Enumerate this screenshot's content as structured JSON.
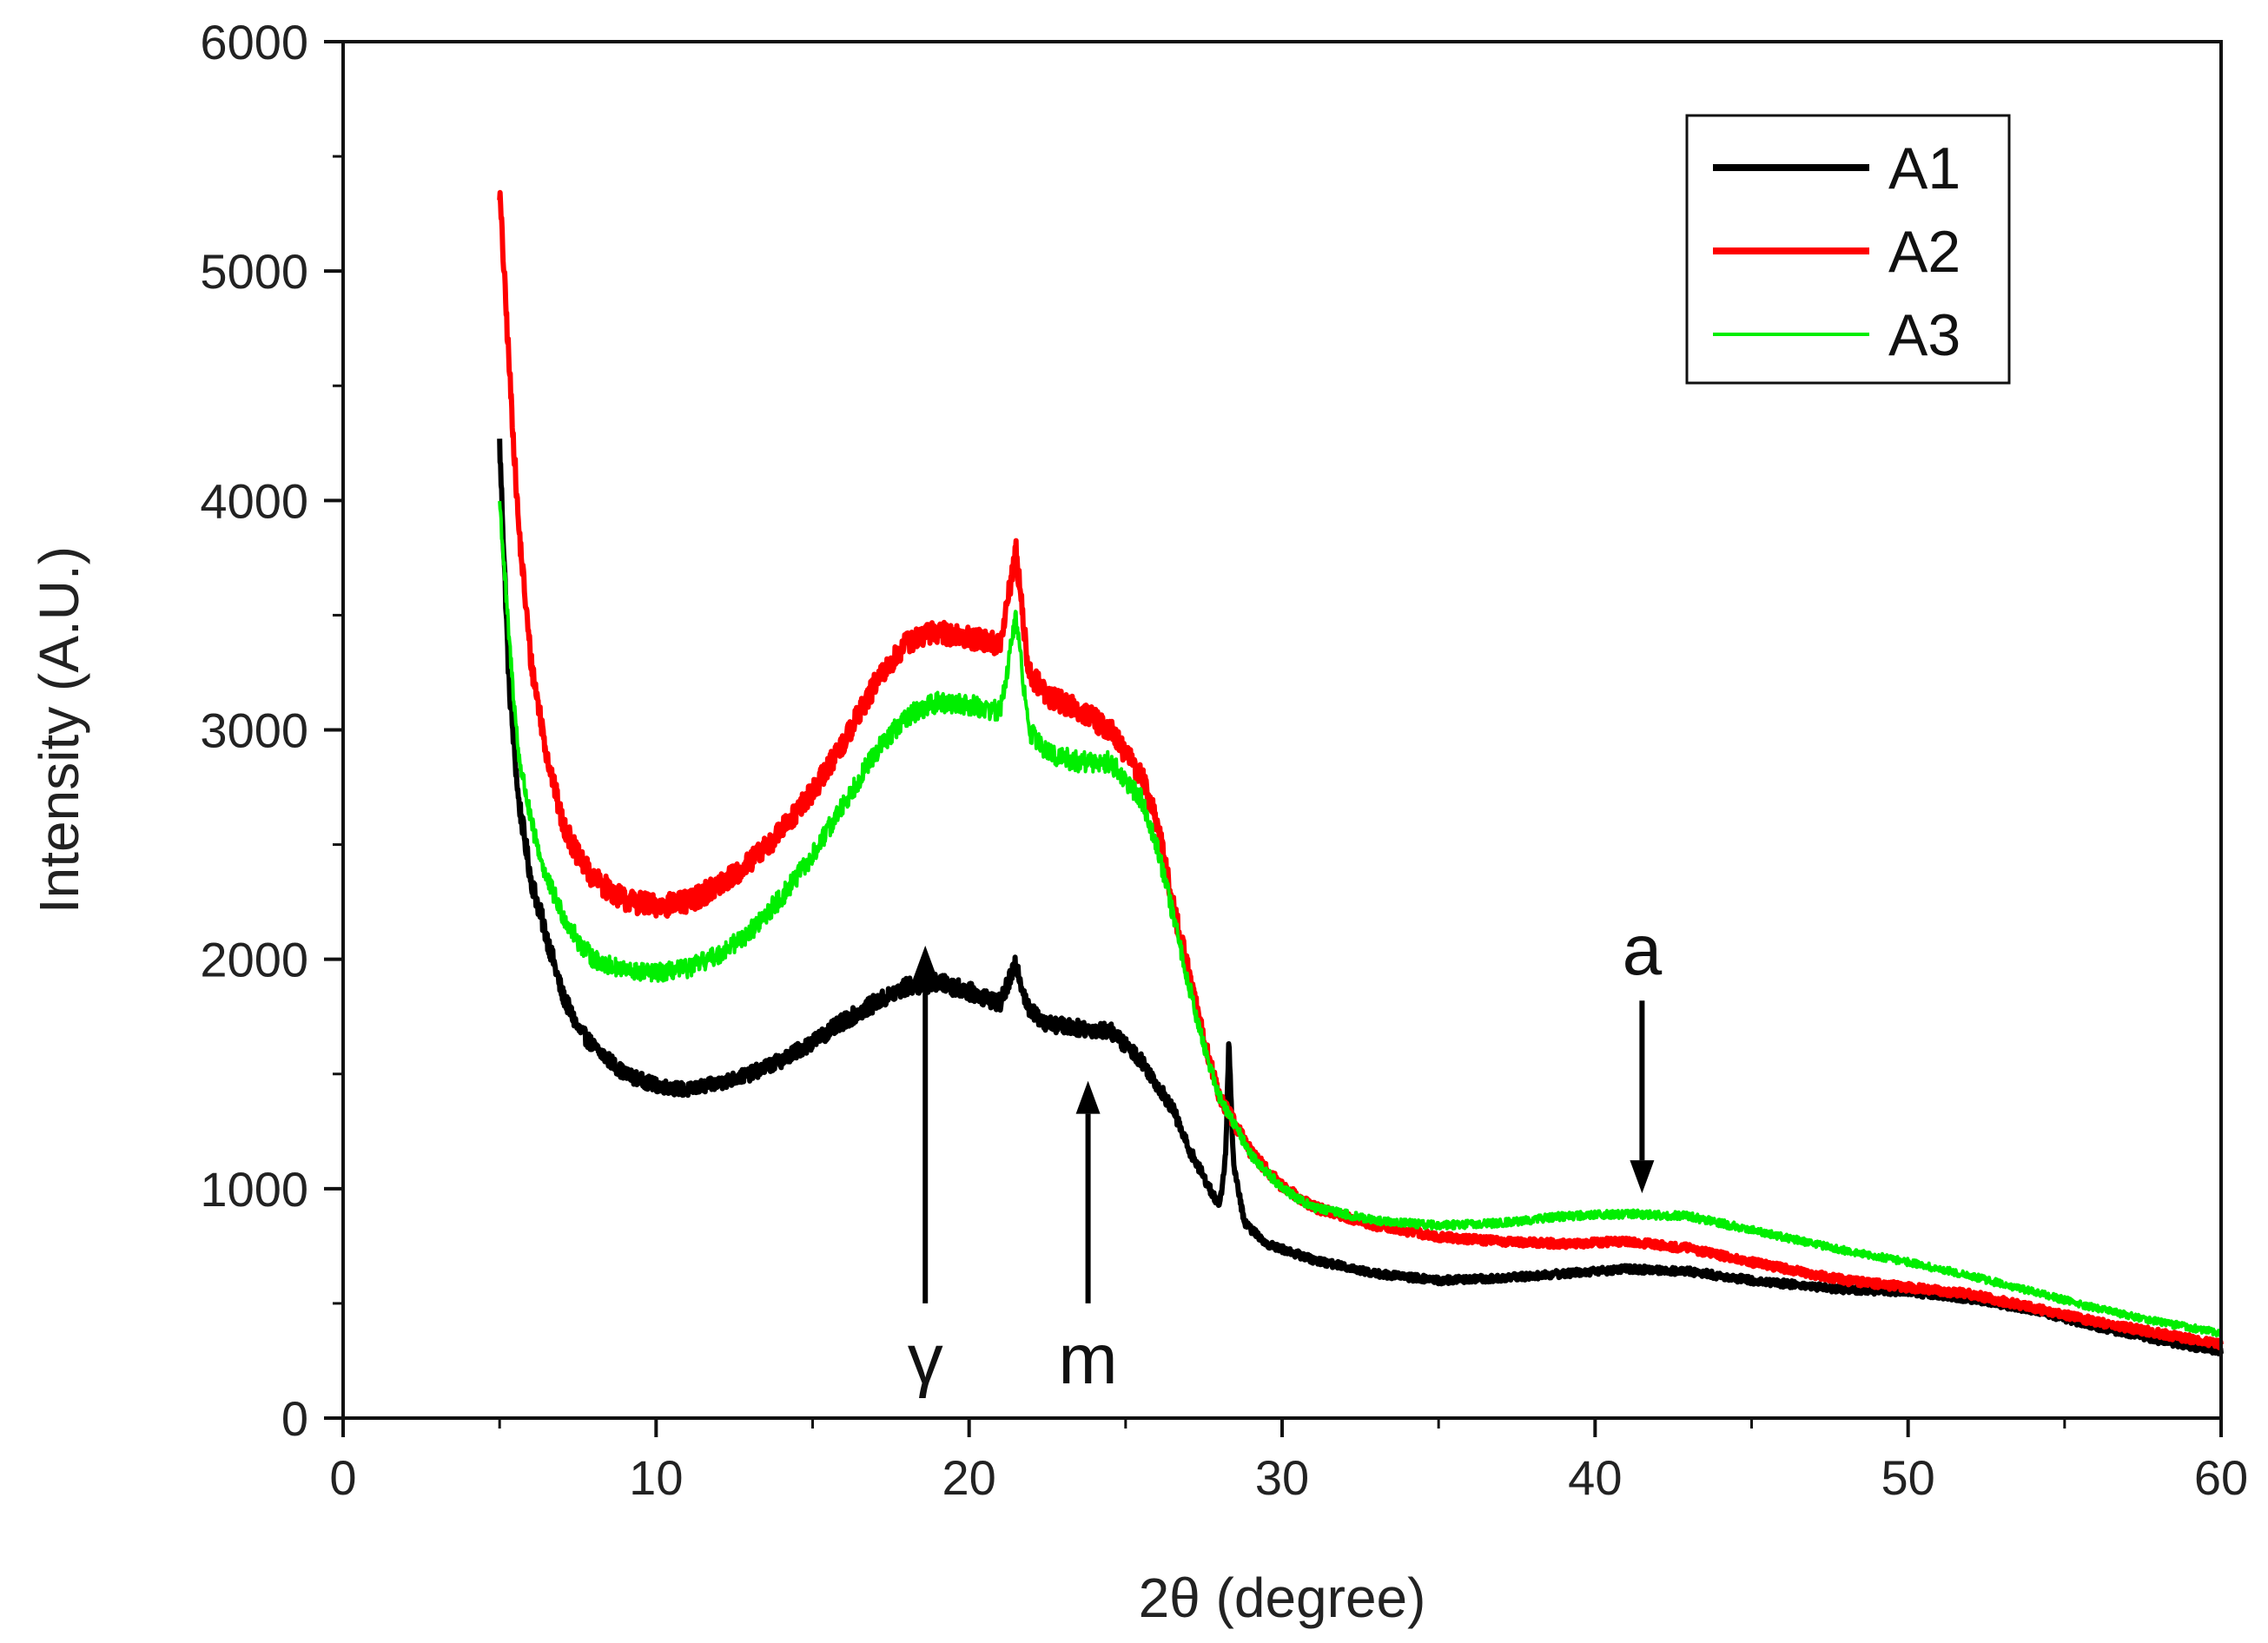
{
  "chart_data": {
    "type": "line",
    "title": "",
    "xlabel": "2θ  (degree)",
    "ylabel": "Intensity (A.U.)",
    "xlim": [
      0,
      60
    ],
    "ylim": [
      0,
      6000
    ],
    "x_ticks": [
      0,
      10,
      20,
      30,
      40,
      50,
      60
    ],
    "y_ticks": [
      0,
      1000,
      2000,
      3000,
      4000,
      5000,
      6000
    ],
    "x_tick_labels": [
      "0",
      "10",
      "20",
      "30",
      "40",
      "50",
      "60"
    ],
    "y_tick_labels": [
      "0",
      "1000",
      "2000",
      "3000",
      "4000",
      "5000",
      "6000"
    ],
    "grid": false,
    "legend_position": "top-right",
    "series": [
      {
        "name": "A1",
        "color": "#000000",
        "noise": 45,
        "points": [
          [
            5.0,
            4250
          ],
          [
            5.3,
            3200
          ],
          [
            5.6,
            2700
          ],
          [
            6.0,
            2350
          ],
          [
            6.5,
            2100
          ],
          [
            7.0,
            1850
          ],
          [
            7.5,
            1700
          ],
          [
            8.0,
            1620
          ],
          [
            9.0,
            1500
          ],
          [
            10.0,
            1450
          ],
          [
            11.0,
            1430
          ],
          [
            12.0,
            1460
          ],
          [
            13.0,
            1500
          ],
          [
            14.0,
            1560
          ],
          [
            15.0,
            1640
          ],
          [
            16.0,
            1730
          ],
          [
            17.0,
            1810
          ],
          [
            18.0,
            1880
          ],
          [
            19.0,
            1900
          ],
          [
            20.0,
            1860
          ],
          [
            21.0,
            1810
          ],
          [
            21.5,
            1980
          ],
          [
            21.9,
            1780
          ],
          [
            22.5,
            1720
          ],
          [
            23.5,
            1700
          ],
          [
            24.5,
            1690
          ],
          [
            25.5,
            1560
          ],
          [
            26.5,
            1350
          ],
          [
            27.0,
            1180
          ],
          [
            27.5,
            1050
          ],
          [
            28.0,
            920
          ],
          [
            28.2,
            1150
          ],
          [
            28.3,
            1650
          ],
          [
            28.45,
            1100
          ],
          [
            28.8,
            850
          ],
          [
            29.5,
            760
          ],
          [
            31.0,
            690
          ],
          [
            33.0,
            630
          ],
          [
            35.0,
            600
          ],
          [
            37.0,
            610
          ],
          [
            39.0,
            630
          ],
          [
            41.0,
            650
          ],
          [
            43.0,
            640
          ],
          [
            45.0,
            600
          ],
          [
            48.0,
            560
          ],
          [
            50.0,
            550
          ],
          [
            52.0,
            520
          ],
          [
            54.0,
            470
          ],
          [
            56.0,
            400
          ],
          [
            58.0,
            340
          ],
          [
            60.0,
            290
          ]
        ]
      },
      {
        "name": "A2",
        "color": "#ff0000",
        "noise": 50,
        "points": [
          [
            5.0,
            5350
          ],
          [
            5.3,
            4600
          ],
          [
            5.6,
            3900
          ],
          [
            6.0,
            3300
          ],
          [
            6.5,
            2900
          ],
          [
            7.0,
            2600
          ],
          [
            7.5,
            2450
          ],
          [
            8.0,
            2350
          ],
          [
            9.0,
            2260
          ],
          [
            10.0,
            2230
          ],
          [
            11.0,
            2250
          ],
          [
            12.0,
            2320
          ],
          [
            13.0,
            2420
          ],
          [
            14.0,
            2560
          ],
          [
            15.0,
            2730
          ],
          [
            16.0,
            2950
          ],
          [
            17.0,
            3200
          ],
          [
            18.0,
            3380
          ],
          [
            19.0,
            3430
          ],
          [
            20.0,
            3400
          ],
          [
            21.0,
            3370
          ],
          [
            21.5,
            3780
          ],
          [
            21.9,
            3250
          ],
          [
            22.5,
            3150
          ],
          [
            23.5,
            3090
          ],
          [
            24.5,
            3000
          ],
          [
            25.5,
            2800
          ],
          [
            26.0,
            2600
          ],
          [
            26.5,
            2250
          ],
          [
            27.0,
            1950
          ],
          [
            27.5,
            1650
          ],
          [
            28.0,
            1400
          ],
          [
            29.0,
            1160
          ],
          [
            30.0,
            1010
          ],
          [
            31.0,
            920
          ],
          [
            33.0,
            840
          ],
          [
            35.0,
            790
          ],
          [
            37.0,
            770
          ],
          [
            39.0,
            760
          ],
          [
            41.0,
            770
          ],
          [
            43.0,
            740
          ],
          [
            45.0,
            680
          ],
          [
            48.0,
            600
          ],
          [
            50.0,
            570
          ],
          [
            52.0,
            540
          ],
          [
            54.0,
            480
          ],
          [
            56.0,
            420
          ],
          [
            58.0,
            370
          ],
          [
            60.0,
            320
          ]
        ]
      },
      {
        "name": "A3",
        "color": "#00ee00",
        "noise": 45,
        "points": [
          [
            5.0,
            4000
          ],
          [
            5.3,
            3400
          ],
          [
            5.6,
            2900
          ],
          [
            6.0,
            2600
          ],
          [
            6.5,
            2350
          ],
          [
            7.0,
            2200
          ],
          [
            7.5,
            2080
          ],
          [
            8.0,
            2000
          ],
          [
            9.0,
            1950
          ],
          [
            10.0,
            1940
          ],
          [
            11.0,
            1960
          ],
          [
            12.0,
            2020
          ],
          [
            13.0,
            2120
          ],
          [
            14.0,
            2270
          ],
          [
            15.0,
            2450
          ],
          [
            16.0,
            2680
          ],
          [
            17.0,
            2900
          ],
          [
            18.0,
            3060
          ],
          [
            19.0,
            3120
          ],
          [
            20.0,
            3110
          ],
          [
            21.0,
            3080
          ],
          [
            21.5,
            3500
          ],
          [
            21.9,
            3000
          ],
          [
            22.5,
            2900
          ],
          [
            23.5,
            2860
          ],
          [
            24.5,
            2860
          ],
          [
            25.5,
            2700
          ],
          [
            26.0,
            2500
          ],
          [
            26.5,
            2200
          ],
          [
            27.0,
            1900
          ],
          [
            27.5,
            1620
          ],
          [
            28.0,
            1400
          ],
          [
            29.0,
            1150
          ],
          [
            30.0,
            1000
          ],
          [
            31.0,
            920
          ],
          [
            33.0,
            860
          ],
          [
            35.0,
            840
          ],
          [
            37.0,
            850
          ],
          [
            39.0,
            880
          ],
          [
            41.0,
            890
          ],
          [
            43.0,
            880
          ],
          [
            45.0,
            820
          ],
          [
            48.0,
            730
          ],
          [
            50.0,
            680
          ],
          [
            52.0,
            620
          ],
          [
            54.0,
            550
          ],
          [
            56.0,
            480
          ],
          [
            58.0,
            420
          ],
          [
            60.0,
            370
          ]
        ]
      }
    ],
    "annotations": [
      {
        "label": "γ",
        "x": 18.6,
        "direction": "up",
        "y_head": 2060,
        "y_tail": 500,
        "label_pos": "below"
      },
      {
        "label": "m",
        "x": 23.8,
        "direction": "up",
        "y_head": 1470,
        "y_tail": 500,
        "label_pos": "below"
      },
      {
        "label": "a",
        "x": 41.5,
        "direction": "down",
        "y_head": 980,
        "y_tail": 1820,
        "label_pos": "above"
      }
    ]
  }
}
